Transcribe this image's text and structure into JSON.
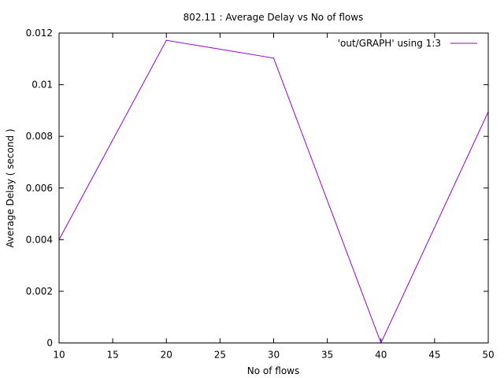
{
  "chart_data": {
    "type": "line",
    "title": "802.11 : Average Delay vs No of flows",
    "xlabel": "No of flows",
    "ylabel": "Average Delay ( second )",
    "xlim": [
      10,
      50
    ],
    "ylim": [
      0,
      0.012
    ],
    "xticks": [
      10,
      15,
      20,
      25,
      30,
      35,
      40,
      45,
      50
    ],
    "xtick_labels": [
      "10",
      "15",
      "20",
      "25",
      "30",
      "35",
      "40",
      "45",
      "50"
    ],
    "yticks": [
      0,
      0.002,
      0.004,
      0.006,
      0.008,
      0.01,
      0.012
    ],
    "ytick_labels": [
      "0",
      "0.002",
      "0.004",
      "0.006",
      "0.008",
      "0.01",
      "0.012"
    ],
    "grid": false,
    "legend_position": "top-right",
    "series": [
      {
        "name": "'out/GRAPH' using 1:3",
        "color": "#9400d3",
        "x": [
          10,
          20,
          30,
          40,
          50
        ],
        "y": [
          0.004,
          0.01172,
          0.01103,
          0.0,
          0.00895
        ]
      }
    ]
  }
}
